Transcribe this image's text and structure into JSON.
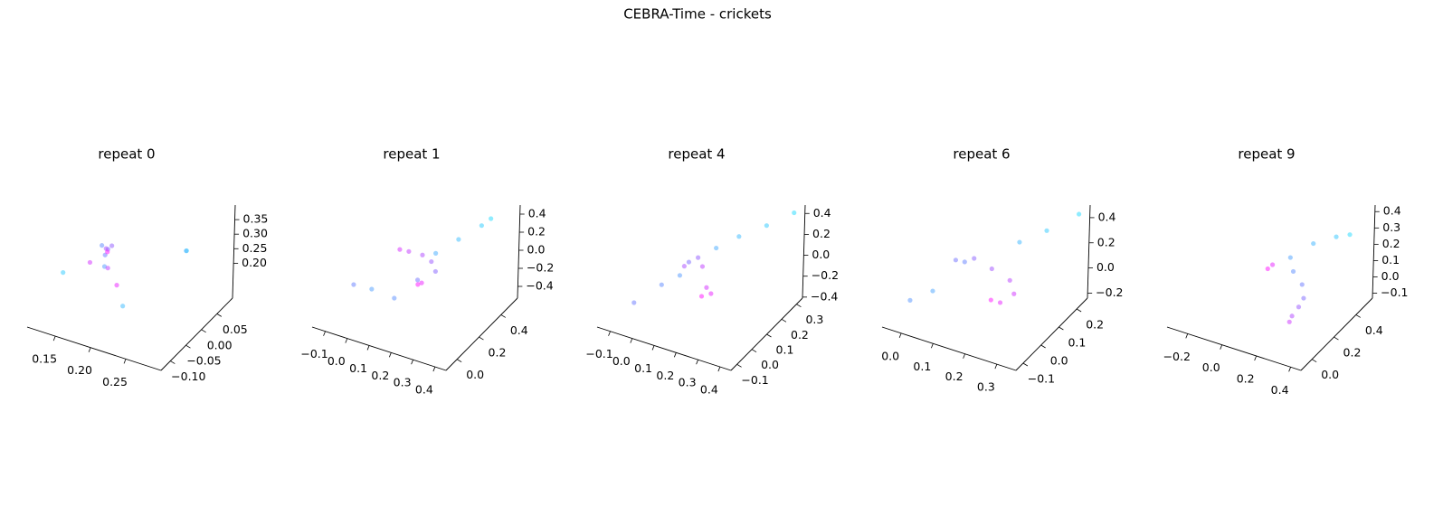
{
  "title": "CEBRA-Time - crickets",
  "chart_data": [
    {
      "type": "scatter3d",
      "title": "repeat 0",
      "cmap": [
        "#33ddff",
        "#7b7bff",
        "#ff22ff"
      ],
      "xlim": [
        0.11,
        0.3
      ],
      "ylim": [
        -0.13,
        0.1
      ],
      "zlim": [
        0.08,
        0.4
      ],
      "xticks": [
        0.15,
        {
          "value": 0.2,
          "label": "0.20"
        },
        0.25
      ],
      "yticks": [
        {
          "value": -0.1,
          "label": "−0.10"
        },
        {
          "value": -0.05,
          "label": "−0.05"
        },
        {
          "value": 0,
          "label": "0.00"
        },
        0.05
      ],
      "zticks": [
        {
          "value": 0.2,
          "label": "0.20"
        },
        0.25,
        {
          "value": 0.3,
          "label": "0.30"
        },
        0.35
      ],
      "x": [
        0.253,
        0.129,
        0.224,
        0.272,
        0.148,
        0.163,
        0.173,
        0.167,
        0.177,
        0.169,
        0.182,
        0.152,
        0.205,
        0.171
      ],
      "y": [
        0.054,
        -0.061,
        -0.084,
        0.008,
        0.031,
        -0.015,
        -0.027,
        -0.004,
        -0.015,
        -0.015,
        -0.038,
        -0.027,
        -0.061,
        -0.015
      ],
      "z": [
        0.256,
        0.208,
        0.192,
        0.32,
        0.144,
        0.278,
        0.266,
        0.256,
        0.288,
        0.272,
        0.24,
        0.224,
        0.224,
        0.262
      ]
    },
    {
      "type": "scatter3d",
      "title": "repeat 1",
      "cmap": [
        "#33ddff",
        "#7b7bff",
        "#ff22ff"
      ],
      "xlim": [
        -0.16,
        0.45
      ],
      "ylim": [
        -0.1,
        0.55
      ],
      "zlim": [
        -0.53,
        0.5
      ],
      "xticks": [
        {
          "value": -0.1,
          "label": "−0.1"
        },
        {
          "value": 0,
          "label": "0.0"
        },
        0.1,
        0.2,
        0.3,
        0.4
      ],
      "yticks": [
        {
          "value": 0,
          "label": "0.0"
        },
        0.2,
        0.4
      ],
      "zticks": [
        {
          "value": -0.4,
          "label": "−0.4"
        },
        {
          "value": -0.2,
          "label": "−0.2"
        },
        {
          "value": 0,
          "label": "0.0"
        },
        0.2,
        0.4
      ],
      "x": [
        0.351,
        0.31,
        0.239,
        0.169,
        0.01,
        0.113,
        -0.072,
        0.216,
        0.233,
        0.213,
        0.172,
        0.11,
        0.069,
        0.172,
        0.155
      ],
      "y": [
        0.485,
        0.485,
        0.42,
        0.355,
        0.095,
        0.095,
        0.095,
        0.095,
        0.225,
        0.225,
        0.225,
        0.225,
        0.225,
        0.225,
        0.225
      ],
      "z": [
        0.352,
        0.243,
        0.114,
        -0.015,
        -0.216,
        -0.235,
        -0.231,
        0.047,
        -0.005,
        0.088,
        0.129,
        0.119,
        0.109,
        -0.18,
        -0.211
      ]
    },
    {
      "type": "scatter3d",
      "title": "repeat 4",
      "cmap": [
        "#33ddff",
        "#7b7bff",
        "#ff22ff"
      ],
      "xlim": [
        -0.16,
        0.45
      ],
      "ylim": [
        -0.14,
        0.34
      ],
      "zlim": [
        -0.41,
        0.48
      ],
      "xticks": [
        {
          "value": -0.1,
          "label": "−0.1"
        },
        {
          "value": 0,
          "label": "0.0"
        },
        0.1,
        0.2,
        0.3,
        0.4
      ],
      "yticks": [
        {
          "value": -0.1,
          "label": "−0.1"
        },
        {
          "value": 0,
          "label": "0.0"
        },
        0.1,
        0.2,
        0.3
      ],
      "zticks": [
        {
          "value": -0.4,
          "label": "−0.4"
        },
        {
          "value": -0.2,
          "label": "−0.2"
        },
        {
          "value": 0,
          "label": "0.0"
        },
        0.2,
        0.4
      ],
      "x": [
        0.401,
        0.31,
        0.218,
        0.148,
        0.097,
        0.063,
        -0.028,
        0.089,
        0.13,
        0.069,
        0.151,
        0.172,
        0.193,
        0.151
      ],
      "y": [
        0.34,
        0.292,
        0.244,
        0.196,
        0.028,
        -0.044,
        -0.092,
        0.1,
        0.1,
        0.1,
        0.1,
        0.1,
        0.1,
        0.1
      ],
      "z": [
        0.373,
        0.258,
        0.16,
        0.071,
        0.017,
        0.008,
        -0.156,
        0.035,
        0.106,
        -0.018,
        0.035,
        -0.152,
        -0.196,
        -0.25
      ]
    },
    {
      "type": "scatter3d",
      "title": "repeat 6",
      "cmap": [
        "#33ddff",
        "#7b7bff",
        "#ff22ff"
      ],
      "xlim": [
        -0.06,
        0.36
      ],
      "ylim": [
        -0.14,
        0.26
      ],
      "zlim": [
        -0.24,
        0.5
      ],
      "xticks": [
        {
          "value": 0,
          "label": "0.0"
        },
        0.1,
        0.2,
        0.3
      ],
      "yticks": [
        {
          "value": -0.1,
          "label": "−0.1"
        },
        {
          "value": 0,
          "label": "0.0"
        },
        0.1,
        0.2
      ],
      "zticks": [
        {
          "value": -0.2,
          "label": "−0.2"
        },
        {
          "value": 0,
          "label": "0.0"
        },
        0.2,
        0.4
      ],
      "x": [
        0.326,
        0.249,
        0.187,
        0.051,
        0.003,
        0.083,
        0.055,
        0.112,
        0.168,
        0.225,
        0.239,
        0.197,
        0.168
      ],
      "y": [
        0.26,
        0.22,
        0.18,
        -0.06,
        -0.1,
        0.06,
        0.06,
        0.06,
        0.06,
        0.06,
        0.06,
        0.06,
        0.06
      ],
      "z": [
        0.4,
        0.263,
        0.178,
        0.023,
        -0.033,
        0.108,
        0.1,
        0.16,
        0.123,
        0.078,
        -0.018,
        -0.122,
        -0.125
      ]
    },
    {
      "type": "scatter3d",
      "title": "repeat 9",
      "cmap": [
        "#33ddff",
        "#7b7bff",
        "#ff22ff"
      ],
      "xlim": [
        -0.32,
        0.46
      ],
      "ylim": [
        -0.1,
        0.55
      ],
      "zlim": [
        -0.13,
        0.44
      ],
      "xticks": [
        {
          "value": -0.2,
          "label": "−0.2"
        },
        {
          "value": 0,
          "label": "0.0"
        },
        0.2,
        0.4
      ],
      "yticks": [
        {
          "value": 0,
          "label": "0.0"
        },
        0.2,
        0.4
      ],
      "zticks": [
        {
          "value": -0.1,
          "label": "−0.1"
        },
        {
          "value": 0,
          "label": "0.0"
        },
        0.1,
        0.2,
        0.3,
        0.4
      ],
      "x": [
        0.359,
        0.281,
        0.19,
        0.1,
        0.199,
        0.252,
        0.263,
        0.236,
        0.199,
        0.225,
        0.078,
        0.051
      ],
      "y": [
        0.485,
        0.485,
        0.42,
        0.355,
        0.225,
        0.225,
        0.225,
        0.225,
        0.225,
        0.16,
        0.225,
        0.225
      ],
      "z": [
        0.269,
        0.229,
        0.201,
        0.129,
        0.166,
        0.104,
        0.024,
        -0.039,
        -0.107,
        -0.09,
        0.166,
        0.132
      ]
    }
  ]
}
